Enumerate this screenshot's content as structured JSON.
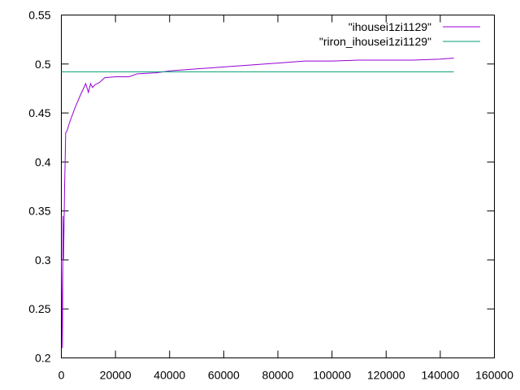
{
  "chart_data": {
    "type": "line",
    "title": "",
    "xlabel": "",
    "ylabel": "",
    "xlim": [
      0,
      160000
    ],
    "ylim": [
      0.2,
      0.55
    ],
    "x_ticks": [
      0,
      20000,
      40000,
      60000,
      80000,
      100000,
      120000,
      140000,
      160000
    ],
    "y_ticks": [
      0.2,
      0.25,
      0.3,
      0.35,
      0.4,
      0.45,
      0.5,
      0.55
    ],
    "x_tick_labels": [
      "0",
      "20000",
      "40000",
      "60000",
      "80000",
      "100000",
      "120000",
      "140000",
      "160000"
    ],
    "y_tick_labels": [
      "0.2",
      "0.25",
      "0.3",
      "0.35",
      "0.4",
      "0.45",
      "0.5",
      "0.55"
    ],
    "grid": false,
    "legend_position": "top-right",
    "series": [
      {
        "name": "\"ihousei1zi1129\"",
        "color": "#9400d3",
        "x": [
          0,
          400,
          600,
          800,
          1000,
          1200,
          1400,
          1600,
          2000,
          3000,
          5000,
          7000,
          9000,
          10000,
          10800,
          11500,
          12500,
          14000,
          16000,
          20000,
          25000,
          28000,
          35000,
          40000,
          50000,
          60000,
          70000,
          80000,
          90000,
          100000,
          110000,
          120000,
          130000,
          140000,
          145000
        ],
        "y": [
          0.3,
          0.21,
          0.345,
          0.3,
          0.335,
          0.375,
          0.4,
          0.43,
          0.431,
          0.44,
          0.455,
          0.468,
          0.48,
          0.471,
          0.48,
          0.476,
          0.479,
          0.481,
          0.486,
          0.487,
          0.487,
          0.49,
          0.491,
          0.493,
          0.495,
          0.497,
          0.499,
          0.501,
          0.503,
          0.503,
          0.504,
          0.504,
          0.504,
          0.505,
          0.506
        ]
      },
      {
        "name": "\"riron_ihousei1zi1129\"",
        "color": "#009e73",
        "x": [
          0,
          145000
        ],
        "y": [
          0.492,
          0.492
        ]
      }
    ]
  }
}
